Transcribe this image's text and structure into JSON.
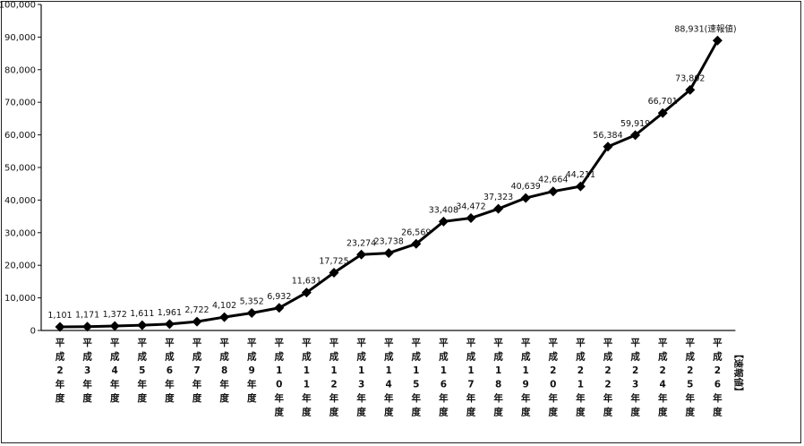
{
  "chart_data": {
    "type": "line",
    "title": "",
    "xlabel": "",
    "ylabel": "",
    "ylim": [
      0,
      100000
    ],
    "yticks": [
      "0",
      "10,000",
      "20,000",
      "30,000",
      "40,000",
      "50,000",
      "60,000",
      "70,000",
      "80,000",
      "90,000",
      "100,000"
    ],
    "grid": false,
    "legend": "none",
    "line_color": "#000000",
    "categories": [
      "平成2年度",
      "平成3年度",
      "平成4年度",
      "平成5年度",
      "平成6年度",
      "平成7年度",
      "平成8年度",
      "平成9年度",
      "平成10年度",
      "平成11年度",
      "平成12年度",
      "平成13年度",
      "平成14年度",
      "平成15年度",
      "平成16年度",
      "平成17年度",
      "平成18年度",
      "平成19年度",
      "平成20年度",
      "平成21年度",
      "平成22年度",
      "平成23年度",
      "平成24年度",
      "平成25年度",
      "平成26年度"
    ],
    "category_note": "【速報値】",
    "values": [
      1101,
      1171,
      1372,
      1611,
      1961,
      2722,
      4102,
      5352,
      6932,
      11631,
      17725,
      23274,
      23738,
      26569,
      33408,
      34472,
      37323,
      40639,
      42664,
      44211,
      56384,
      59919,
      66701,
      73802,
      88931
    ],
    "data_labels": [
      "1,101",
      "1,171",
      "1,372",
      "1,611",
      "1,961",
      "2,722",
      "4,102",
      "5,352",
      "6,932",
      "11,631",
      "17,725",
      "23,274",
      "23,738",
      "26,569",
      "33,408",
      "34,472",
      "37,323",
      "40,639",
      "42,664",
      "44,211",
      "56,384",
      "59,919",
      "66,701",
      "73,802",
      "88,931(速報値)"
    ]
  }
}
